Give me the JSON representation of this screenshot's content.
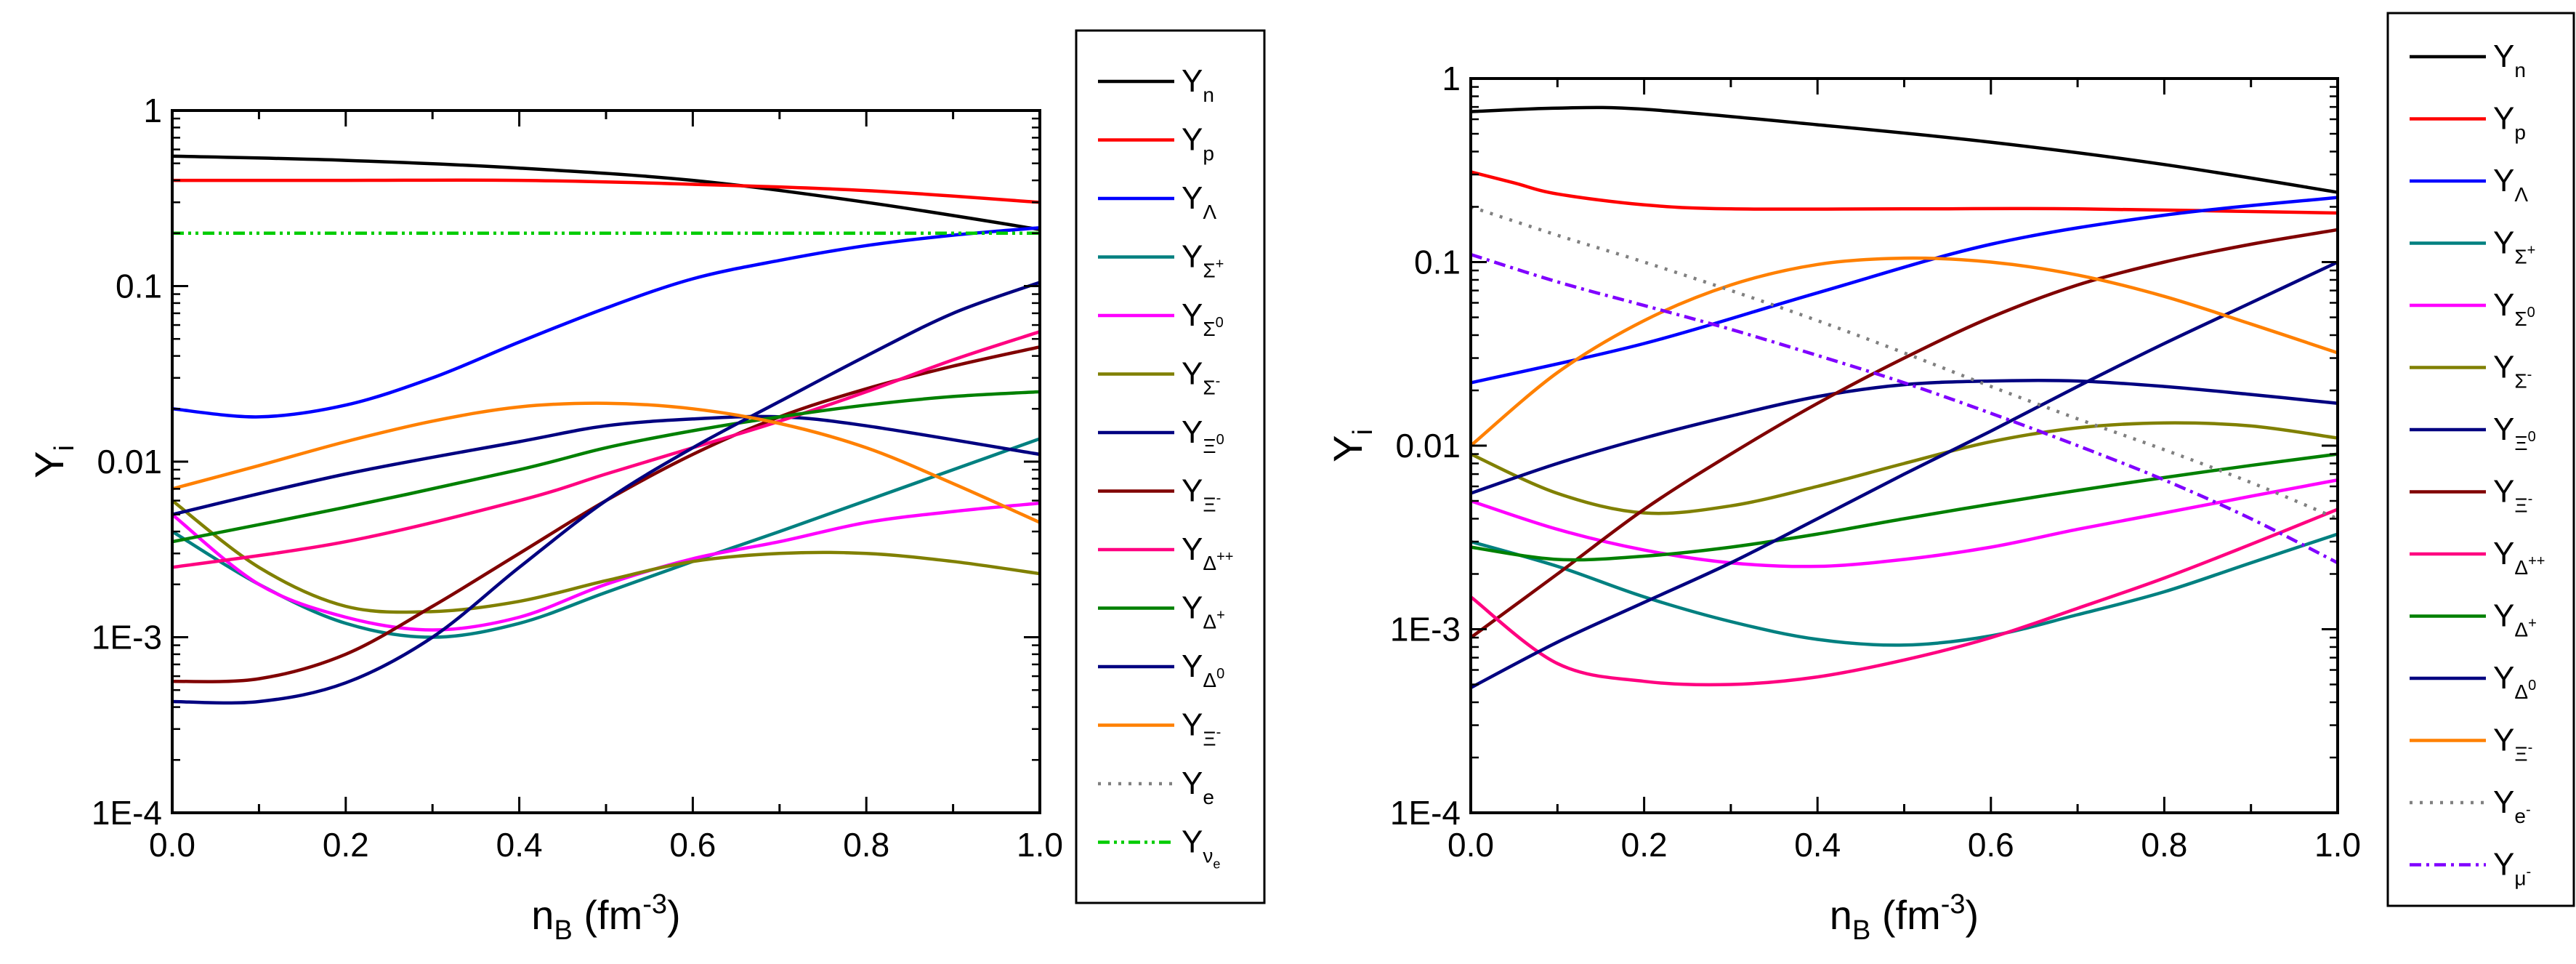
{
  "chart_data": [
    {
      "type": "line",
      "panel": "left",
      "title": "",
      "xlabel": {
        "main": "n",
        "sub": "B",
        "unit": " (fm",
        "sup": "-3",
        "close": ")"
      },
      "ylabel": {
        "main": "Y",
        "sub": "i"
      },
      "xlim": [
        0,
        1
      ],
      "ylim_log10": [
        -4,
        0
      ],
      "x_ticks": [
        0.0,
        0.2,
        0.4,
        0.6,
        0.8,
        1.0
      ],
      "x_tick_labels": [
        "0.0",
        "0.2",
        "0.4",
        "0.6",
        "0.8",
        "1.0"
      ],
      "y_ticks_log10": [
        -4,
        -3,
        -2,
        -1,
        0
      ],
      "y_tick_labels": [
        "1E-4",
        "1E-3",
        "0.01",
        "0.1",
        "1"
      ],
      "legend_position": "right-outside",
      "series": [
        {
          "name": "Y",
          "sub": "n",
          "sup": "",
          "color": "#000000",
          "dash": "solid",
          "x": [
            0,
            0.2,
            0.4,
            0.6,
            0.8,
            1.0
          ],
          "y": [
            0.55,
            0.52,
            0.47,
            0.4,
            0.3,
            0.21
          ]
        },
        {
          "name": "Y",
          "sub": "p",
          "sup": "",
          "color": "#ff0000",
          "dash": "solid",
          "x": [
            0,
            0.2,
            0.4,
            0.6,
            0.8,
            1.0
          ],
          "y": [
            0.4,
            0.4,
            0.4,
            0.38,
            0.35,
            0.3
          ]
        },
        {
          "name": "Y",
          "sub": "Λ",
          "sup": "",
          "color": "#0000ff",
          "dash": "solid",
          "x": [
            0,
            0.1,
            0.2,
            0.3,
            0.4,
            0.5,
            0.6,
            0.7,
            0.8,
            0.9,
            1.0
          ],
          "y": [
            0.02,
            0.018,
            0.021,
            0.03,
            0.048,
            0.075,
            0.11,
            0.14,
            0.17,
            0.195,
            0.215
          ]
        },
        {
          "name": "Y",
          "sub": "Σ",
          "sup": "+",
          "color": "#008080",
          "dash": "solid",
          "x": [
            0,
            0.1,
            0.2,
            0.3,
            0.4,
            0.5,
            0.6,
            0.7,
            0.8,
            0.9,
            1.0
          ],
          "y": [
            0.004,
            0.002,
            0.0012,
            0.001,
            0.0012,
            0.0018,
            0.0027,
            0.004,
            0.006,
            0.009,
            0.0135
          ]
        },
        {
          "name": "Y",
          "sub": "Σ",
          "sup": "0",
          "color": "#ff00ff",
          "dash": "solid",
          "x": [
            0,
            0.1,
            0.2,
            0.3,
            0.4,
            0.5,
            0.6,
            0.7,
            0.8,
            0.9,
            1.0
          ],
          "y": [
            0.005,
            0.002,
            0.0013,
            0.0011,
            0.0013,
            0.002,
            0.0028,
            0.0035,
            0.0045,
            0.0052,
            0.0058
          ]
        },
        {
          "name": "Y",
          "sub": "Σ",
          "sup": "-",
          "color": "#808000",
          "dash": "solid",
          "x": [
            0,
            0.1,
            0.2,
            0.3,
            0.4,
            0.5,
            0.6,
            0.7,
            0.8,
            0.9,
            1.0
          ],
          "y": [
            0.006,
            0.0025,
            0.0015,
            0.0014,
            0.0016,
            0.0021,
            0.0027,
            0.003,
            0.003,
            0.0027,
            0.0023
          ]
        },
        {
          "name": "Y",
          "sub": "Ξ",
          "sup": "0",
          "color": "#000080",
          "dash": "solid",
          "x": [
            0,
            0.2,
            0.4,
            0.5,
            0.6,
            0.7,
            0.8,
            1.0
          ],
          "y": [
            0.005,
            0.0085,
            0.013,
            0.016,
            0.0175,
            0.018,
            0.016,
            0.011
          ]
        },
        {
          "name": "Y",
          "sub": "Ξ",
          "sup": "-",
          "color": "#800000",
          "dash": "solid",
          "x": [
            0,
            0.1,
            0.2,
            0.3,
            0.4,
            0.5,
            0.6,
            0.7,
            0.8,
            0.9,
            1.0
          ],
          "y": [
            0.00056,
            0.00058,
            0.0008,
            0.0015,
            0.003,
            0.006,
            0.011,
            0.018,
            0.026,
            0.035,
            0.045
          ]
        },
        {
          "name": "Y",
          "sub": "Δ",
          "sup": "++",
          "color": "#ff0080",
          "dash": "solid",
          "x": [
            0,
            0.2,
            0.4,
            0.5,
            0.6,
            0.7,
            0.8,
            0.9,
            1.0
          ],
          "y": [
            0.0025,
            0.0035,
            0.006,
            0.0085,
            0.012,
            0.017,
            0.025,
            0.038,
            0.055
          ]
        },
        {
          "name": "Y",
          "sub": "Δ",
          "sup": "+",
          "color": "#008000",
          "dash": "solid",
          "x": [
            0,
            0.2,
            0.4,
            0.5,
            0.6,
            0.7,
            0.8,
            0.9,
            1.0
          ],
          "y": [
            0.0035,
            0.0055,
            0.009,
            0.012,
            0.015,
            0.018,
            0.021,
            0.0235,
            0.025
          ]
        },
        {
          "name": "Y",
          "sub": "Δ",
          "sup": "0",
          "color": "#000080",
          "dash": "solid",
          "x": [
            0,
            0.1,
            0.2,
            0.3,
            0.4,
            0.5,
            0.6,
            0.7,
            0.8,
            0.9,
            1.0
          ],
          "y": [
            0.00043,
            0.00043,
            0.00055,
            0.001,
            0.0025,
            0.006,
            0.012,
            0.022,
            0.04,
            0.07,
            0.105
          ]
        },
        {
          "name": "Y",
          "sub": "Ξ",
          "sup": "-",
          "color": "#ff8000",
          "dash": "solid",
          "x": [
            0,
            0.1,
            0.2,
            0.3,
            0.4,
            0.5,
            0.6,
            0.7,
            0.8,
            0.9,
            1.0
          ],
          "y": [
            0.007,
            0.0095,
            0.013,
            0.017,
            0.0205,
            0.0215,
            0.02,
            0.0165,
            0.012,
            0.0075,
            0.0045
          ]
        },
        {
          "name": "Y",
          "sub": "e",
          "sup": "",
          "color": "#808080",
          "dash": "dot",
          "x": [],
          "y": []
        },
        {
          "name": "Y",
          "sub": "ν",
          "sup": "",
          "subsub": "e",
          "color": "#00cc00",
          "dash": "dashdotdot",
          "x": [
            0,
            1.0
          ],
          "y": [
            0.2,
            0.2
          ]
        }
      ]
    },
    {
      "type": "line",
      "panel": "right",
      "title": "",
      "xlabel": {
        "main": "n",
        "sub": "B",
        "unit": " (fm",
        "sup": "-3",
        "close": ")"
      },
      "ylabel": {
        "main": "Y",
        "sub": "i"
      },
      "xlim": [
        0,
        1
      ],
      "ylim_log10": [
        -4,
        0
      ],
      "x_ticks": [
        0.0,
        0.2,
        0.4,
        0.6,
        0.8,
        1.0
      ],
      "x_tick_labels": [
        "0.0",
        "0.2",
        "0.4",
        "0.6",
        "0.8",
        "1.0"
      ],
      "y_ticks_log10": [
        -4,
        -3,
        -2,
        -1,
        0
      ],
      "y_tick_labels": [
        "1E-4",
        "1E-3",
        "0.01",
        "0.1",
        "1"
      ],
      "legend_position": "right-outside",
      "series": [
        {
          "name": "Y",
          "sub": "n",
          "sup": "",
          "color": "#000000",
          "dash": "solid",
          "x": [
            0,
            0.1,
            0.2,
            0.4,
            0.6,
            0.8,
            1.0
          ],
          "y": [
            0.66,
            0.69,
            0.68,
            0.56,
            0.45,
            0.34,
            0.24
          ]
        },
        {
          "name": "Y",
          "sub": "p",
          "sup": "",
          "color": "#ff0000",
          "dash": "solid",
          "x": [
            0,
            0.05,
            0.1,
            0.2,
            0.3,
            0.5,
            0.7,
            1.0
          ],
          "y": [
            0.31,
            0.27,
            0.235,
            0.205,
            0.195,
            0.195,
            0.195,
            0.185
          ]
        },
        {
          "name": "Y",
          "sub": "Λ",
          "sup": "",
          "color": "#0000ff",
          "dash": "solid",
          "x": [
            0,
            0.2,
            0.4,
            0.6,
            0.8,
            1.0
          ],
          "y": [
            0.022,
            0.036,
            0.068,
            0.125,
            0.18,
            0.225
          ]
        },
        {
          "name": "Y",
          "sub": "Σ",
          "sup": "+",
          "color": "#008080",
          "dash": "solid",
          "x": [
            0,
            0.1,
            0.2,
            0.3,
            0.4,
            0.5,
            0.6,
            0.7,
            0.8,
            0.9,
            1.0
          ],
          "y": [
            0.003,
            0.0022,
            0.0015,
            0.0011,
            0.00088,
            0.00082,
            0.00092,
            0.0012,
            0.0016,
            0.0023,
            0.0033
          ]
        },
        {
          "name": "Y",
          "sub": "Σ",
          "sup": "0",
          "color": "#ff00ff",
          "dash": "solid",
          "x": [
            0,
            0.1,
            0.2,
            0.3,
            0.4,
            0.5,
            0.6,
            0.7,
            0.8,
            0.9,
            1.0
          ],
          "y": [
            0.005,
            0.0035,
            0.0027,
            0.0023,
            0.0022,
            0.0024,
            0.0028,
            0.0035,
            0.0043,
            0.0053,
            0.0065
          ]
        },
        {
          "name": "Y",
          "sub": "Σ",
          "sup": "-",
          "color": "#808000",
          "dash": "solid",
          "x": [
            0,
            0.1,
            0.2,
            0.3,
            0.4,
            0.5,
            0.6,
            0.7,
            0.8,
            0.9,
            1.0
          ],
          "y": [
            0.009,
            0.0055,
            0.0043,
            0.0047,
            0.006,
            0.008,
            0.0105,
            0.0125,
            0.0133,
            0.0128,
            0.011
          ]
        },
        {
          "name": "Y",
          "sub": "Ξ",
          "sup": "0",
          "color": "#000080",
          "dash": "solid",
          "x": [
            0,
            0.1,
            0.2,
            0.3,
            0.4,
            0.5,
            0.6,
            0.7,
            0.8,
            0.9,
            1.0
          ],
          "y": [
            0.0055,
            0.008,
            0.011,
            0.0145,
            0.0185,
            0.0215,
            0.0225,
            0.0225,
            0.021,
            0.019,
            0.017
          ]
        },
        {
          "name": "Y",
          "sub": "Ξ",
          "sup": "-",
          "color": "#800000",
          "dash": "solid",
          "x": [
            0,
            0.1,
            0.2,
            0.3,
            0.4,
            0.5,
            0.6,
            0.7,
            0.8,
            0.9,
            1.0
          ],
          "y": [
            0.0009,
            0.002,
            0.0045,
            0.009,
            0.017,
            0.03,
            0.05,
            0.075,
            0.1,
            0.125,
            0.15
          ]
        },
        {
          "name": "Y",
          "sub": "Δ",
          "sup": "++",
          "color": "#ff0080",
          "dash": "solid",
          "x": [
            0,
            0.1,
            0.2,
            0.3,
            0.4,
            0.5,
            0.6,
            0.7,
            0.8,
            0.9,
            1.0
          ],
          "y": [
            0.0015,
            0.00065,
            0.00052,
            0.0005,
            0.00055,
            0.00068,
            0.0009,
            0.0013,
            0.0019,
            0.0029,
            0.0045
          ]
        },
        {
          "name": "Y",
          "sub": "Δ",
          "sup": "+",
          "color": "#008000",
          "dash": "solid",
          "x": [
            0,
            0.1,
            0.2,
            0.3,
            0.4,
            0.5,
            0.6,
            0.7,
            0.8,
            0.9,
            1.0
          ],
          "y": [
            0.0028,
            0.0024,
            0.0025,
            0.0028,
            0.0033,
            0.004,
            0.0048,
            0.0057,
            0.0067,
            0.0078,
            0.009
          ]
        },
        {
          "name": "Y",
          "sub": "Δ",
          "sup": "0",
          "color": "#000080",
          "dash": "solid",
          "x": [
            0,
            0.1,
            0.2,
            0.3,
            0.4,
            0.5,
            0.6,
            0.7,
            0.8,
            0.9,
            1.0
          ],
          "y": [
            0.00048,
            0.00085,
            0.0014,
            0.0023,
            0.004,
            0.007,
            0.012,
            0.021,
            0.036,
            0.06,
            0.1
          ]
        },
        {
          "name": "Y",
          "sub": "Ξ",
          "sup": "-",
          "color": "#ff8000",
          "dash": "solid",
          "x": [
            0,
            0.1,
            0.2,
            0.3,
            0.4,
            0.5,
            0.6,
            0.7,
            0.8,
            0.9,
            1.0
          ],
          "y": [
            0.01,
            0.025,
            0.048,
            0.075,
            0.097,
            0.105,
            0.1,
            0.085,
            0.065,
            0.046,
            0.032
          ]
        },
        {
          "name": "Y",
          "sub": "e",
          "sup": "-",
          "color": "#808080",
          "dash": "dot",
          "x": [
            0,
            0.1,
            0.2,
            0.3,
            0.4,
            0.5,
            0.6,
            0.7,
            0.8,
            0.9,
            1.0
          ],
          "y": [
            0.2,
            0.14,
            0.1,
            0.07,
            0.048,
            0.032,
            0.021,
            0.014,
            0.0095,
            0.0063,
            0.004
          ]
        },
        {
          "name": "Y",
          "sub": "μ",
          "sup": "-",
          "color": "#8000ff",
          "dash": "dashdot",
          "x": [
            0,
            0.1,
            0.2,
            0.3,
            0.4,
            0.5,
            0.6,
            0.7,
            0.8,
            0.9,
            1.0
          ],
          "y": [
            0.11,
            0.078,
            0.058,
            0.043,
            0.031,
            0.022,
            0.015,
            0.01,
            0.0065,
            0.004,
            0.0023
          ]
        }
      ]
    }
  ]
}
